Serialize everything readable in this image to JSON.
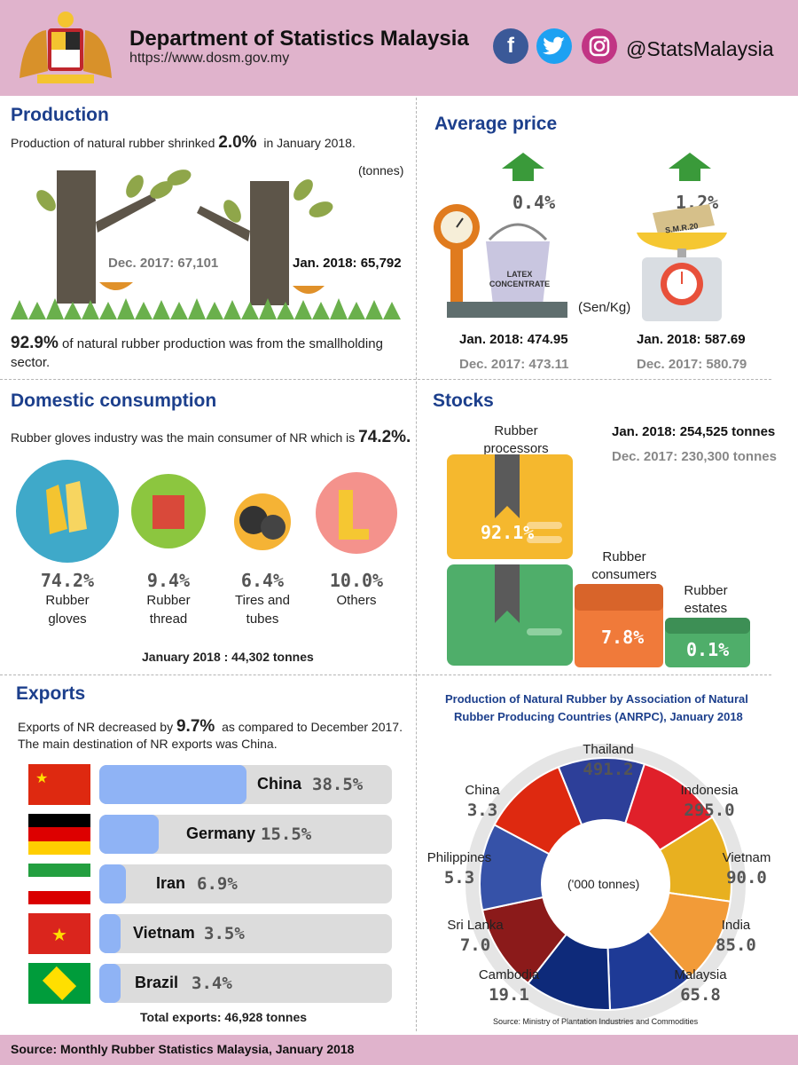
{
  "header": {
    "title": "Department of Statistics Malaysia",
    "url": "https://www.dosm.gov.my",
    "social_handle": "@StatsMalaysia",
    "colors": {
      "band": "#e0b3cc",
      "facebook": "#3b5998",
      "twitter": "#1da1f2",
      "instagram": "#c13584"
    }
  },
  "production": {
    "title": "Production",
    "intro_text": "Production of natural rubber shrinked",
    "intro_pct": "2.0%",
    "intro_suffix": "in January 2018.",
    "unit": "(tonnes)",
    "dec_label": "Dec. 2017: 67,101",
    "jan_label": "Jan. 2018: 65,792",
    "smallholding_pct": "92.9%",
    "smallholding_text": "of natural rubber production was from the smallholding",
    "smallholding_text2": "sector."
  },
  "average_price": {
    "title": "Average price",
    "unit": "(Sen/Kg)",
    "latex_change": "0.4%",
    "latex_label": "LATEX CONCENTRATE",
    "latex_jan": "Jan. 2018: 474.95",
    "latex_dec": "Dec. 2017: 473.11",
    "smr_change": "1.2%",
    "smr_label": "S.M.R.20",
    "smr_jan": "Jan. 2018: 587.69",
    "smr_dec": "Dec. 2017: 580.79"
  },
  "domestic": {
    "title": "Domestic consumption",
    "text": "Rubber gloves industry was the main consumer of NR which is",
    "text_pct": "74.2%.",
    "items": [
      {
        "pct": "74.2%",
        "label1": "Rubber",
        "label2": "gloves",
        "color": "#3fa9c9"
      },
      {
        "pct": "9.4%",
        "label1": "Rubber",
        "label2": "thread",
        "color": "#8cc63f"
      },
      {
        "pct": "6.4%",
        "label1": "Tires and",
        "label2": "tubes",
        "color": "#f5b335"
      },
      {
        "pct": "10.0%",
        "label1": "Others",
        "label2": "",
        "color": "#f4928c"
      }
    ],
    "total": "January 2018 : 44,302  tonnes"
  },
  "stocks": {
    "title": "Stocks",
    "jan": "Jan. 2018: 254,525 tonnes",
    "dec": "Dec. 2017: 230,300 tonnes",
    "processors_label1": "Rubber",
    "processors_label2": "processors",
    "processors_pct": "92.1%",
    "consumers_label1": "Rubber",
    "consumers_label2": "consumers",
    "consumers_pct": "7.8%",
    "estates_label1": "Rubber",
    "estates_label2": "estates",
    "estates_pct": "0.1%"
  },
  "exports": {
    "title": "Exports",
    "line1_pre": "Exports of NR decreased by",
    "line1_pct": "9.7%",
    "line1_post": "as compared to December  2017.",
    "line2": "The main destination of NR exports was China.",
    "total": "Total exports: 46,928 tonnes"
  },
  "anrpc": {
    "title1": "Production of Natural Rubber by Association of Natural",
    "title2": "Rubber Producing Countries (ANRPC), January 2018",
    "unit": "('000 tonnes)",
    "source": "Source: Ministry of Plantation Industries and Commodities"
  },
  "footer": {
    "source": "Source:  Monthly Rubber Statistics Malaysia, January 2018"
  },
  "chart_data": [
    {
      "type": "bar",
      "categories": [
        "China",
        "Germany",
        "Iran",
        "Vietnam",
        "Brazil"
      ],
      "values": [
        38.5,
        15.5,
        6.9,
        3.5,
        3.4
      ],
      "value_labels": [
        "38.5%",
        "15.5%",
        "6.9%",
        "3.5%",
        "3.4%"
      ],
      "title": "Exports",
      "ylim": [
        0,
        100
      ]
    },
    {
      "type": "pie",
      "categories": [
        "Thailand",
        "Indonesia",
        "Vietnam",
        "India",
        "Malaysia",
        "Cambodia",
        "Sri Lanka",
        "Philippines",
        "China"
      ],
      "values": [
        491.2,
        295.0,
        90.0,
        85.0,
        65.8,
        19.1,
        7.0,
        5.3,
        3.3
      ],
      "value_labels": [
        "491.2",
        "295.0",
        "90.0",
        "85.0",
        "65.8",
        "19.1",
        "7.0",
        "5.3",
        "3.3"
      ]
    }
  ]
}
